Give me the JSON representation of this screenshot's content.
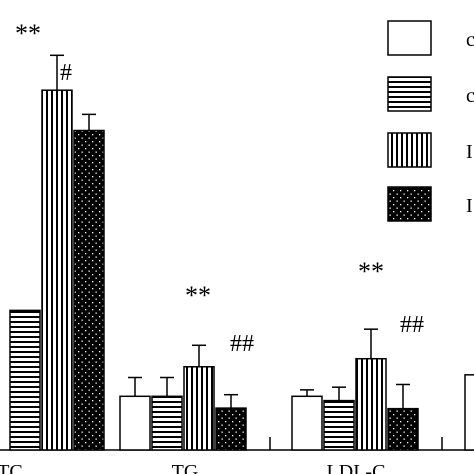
{
  "chart_data": {
    "type": "bar",
    "categories": [
      "TC",
      "TG",
      "LDL-C"
    ],
    "series": [
      {
        "pattern": "blank",
        "values": [
          null,
          1.0,
          1.0
        ],
        "errors": [
          null,
          0.35,
          0.12
        ]
      },
      {
        "pattern": "horizontal",
        "values": [
          2.6,
          1.0,
          0.92
        ],
        "errors": [
          null,
          0.35,
          0.25
        ]
      },
      {
        "pattern": "vertical",
        "values": [
          6.7,
          1.55,
          1.7
        ],
        "errors": [
          0.65,
          0.4,
          0.55
        ]
      },
      {
        "pattern": "dots",
        "values": [
          5.95,
          0.78,
          0.77
        ],
        "errors": [
          0.3,
          0.25,
          0.45
        ]
      }
    ],
    "annotations": [
      {
        "category": "TC",
        "series": 2,
        "text": "**"
      },
      {
        "category": "TC",
        "series": 3,
        "text": "#"
      },
      {
        "category": "TG",
        "series": 2,
        "text": "**"
      },
      {
        "category": "TG",
        "series": 3,
        "text": "##"
      },
      {
        "category": "LDL-C",
        "series": 2,
        "text": "**"
      },
      {
        "category": "LDL-C",
        "series": 3,
        "text": "##"
      }
    ],
    "partial_next_category_value": 1.4,
    "ylim": [
      0,
      8
    ],
    "legend": {
      "placement": "top-right",
      "visible_label_fragments": [
        "c",
        "c",
        "I",
        "I"
      ]
    },
    "grid": false
  },
  "labels": {
    "tc": "TC",
    "tg": "TG",
    "ldl": "LDL-C",
    "ann_tc_star": "**",
    "ann_tc_hash": "#",
    "ann_tg_star": "**",
    "ann_tg_hash": "##",
    "ann_ldl_star": "**",
    "ann_ldl_hash": "##",
    "legend_frag_1": "c",
    "legend_frag_2": "c",
    "legend_frag_3": "I",
    "legend_frag_4": "I"
  }
}
